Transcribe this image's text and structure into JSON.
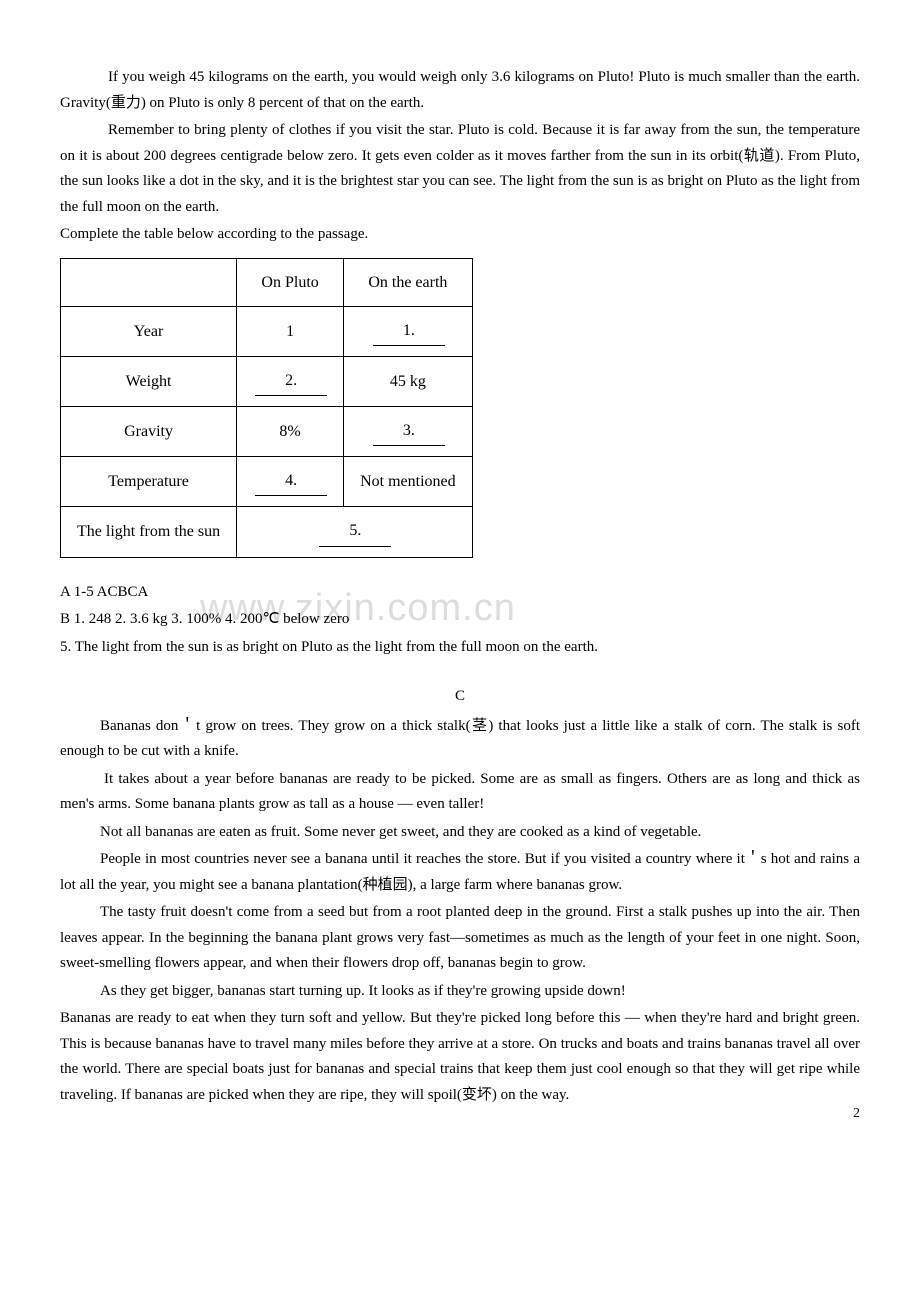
{
  "passage_b": {
    "p1": "If you weigh 45 kilograms on the earth, you would weigh only 3.6 kilograms on Pluto! Pluto is much smaller than the earth. Gravity(重力) on Pluto is only 8 percent of that on the earth.",
    "p2": "Remember to bring plenty of clothes if you visit the star. Pluto is cold. Because it is far away from the sun, the temperature on it is about 200 degrees centigrade below zero. It gets even colder as it moves farther from the sun in its orbit(轨道). From Pluto, the sun looks like a dot in the sky, and it is the brightest star you can see. The light from the sun is as bright on Pluto as the light from the full moon on the earth.",
    "instruction": "Complete the table below according to the passage."
  },
  "table": {
    "col1_header": "On Pluto",
    "col2_header": "On the earth",
    "rows": [
      {
        "label": "Year",
        "pluto": "1",
        "earth_blank": "1."
      },
      {
        "label": "Weight",
        "pluto_blank": "2.",
        "earth": "45 kg"
      },
      {
        "label": "Gravity",
        "pluto": "8%",
        "earth_blank": "3."
      },
      {
        "label": "Temperature",
        "pluto_blank": "4.",
        "earth": "Not mentioned"
      },
      {
        "label": "The light from the sun",
        "pluto_blank": "5.",
        "earth": ""
      }
    ],
    "layout": {
      "col_widths": [
        "200px",
        "200px",
        "200px"
      ],
      "border_color": "#000000",
      "border_width": "1.5px",
      "font_size": "16px"
    }
  },
  "watermark": "www.zixin.com.cn",
  "answers": {
    "line_a": "A    1-5 ACBCA",
    "line_b": "B    1. 248    2. 3.6 kg     3. 100%      4. 200℃  below zero",
    "line_5": "5. The light from the sun is as bright on Pluto as the light from the full moon on the earth."
  },
  "section_c_label": "C",
  "passage_c": {
    "p1": "Bananas don＇t grow on trees. They grow on a thick stalk(茎) that looks just a little like a stalk of corn. The stalk is soft enough to be cut with a knife.",
    "p2": "It takes about a year before bananas are ready to be picked. Some are as small as fingers. Others are as long and thick as men's arms. Some banana plants grow as tall as a house — even taller!",
    "p3": "Not all bananas are eaten as fruit. Some never get sweet, and they are cooked as a kind of vegetable.",
    "p4": "People in most countries never see a banana until it reaches the store. But if you visited a country where it＇s hot and rains a lot all the year, you might see a banana plantation(种植园), a large farm where bananas grow.",
    "p5": "The tasty fruit doesn't come from a seed but from a root planted deep in the ground. First a stalk pushes up into the air. Then leaves appear. In the beginning the banana plant grows very fast—sometimes as much as the length of your feet in one night. Soon, sweet-smelling flowers appear, and when their flowers drop off, bananas begin to grow.",
    "p6": "As they get bigger, bananas start turning up. It looks as if they're growing upside down!",
    "p7": "Bananas are ready to eat when they turn soft and yellow. But they're picked long before this — when they're hard and bright green. This is because bananas have to travel many miles before they arrive at a store. On trucks and boats and trains bananas travel all over the world. There are special boats just for bananas and special trains that keep them just cool enough so that they will get ripe while traveling. If bananas are picked when they are ripe, they will spoil(变坏) on the way."
  },
  "page_number": "2"
}
